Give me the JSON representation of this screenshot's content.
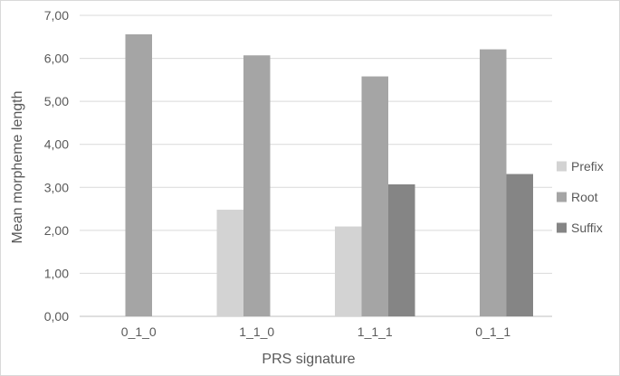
{
  "chart_data": {
    "type": "bar",
    "categories": [
      "0_1_0",
      "1_1_0",
      "1_1_1",
      "0_1_1"
    ],
    "series": [
      {
        "name": "Prefix",
        "color": "#d3d3d3",
        "values": [
          null,
          2.48,
          2.09,
          null
        ]
      },
      {
        "name": "Root",
        "color": "#a5a5a5",
        "values": [
          6.56,
          6.07,
          5.58,
          6.21
        ]
      },
      {
        "name": "Suffix",
        "color": "#858585",
        "values": [
          null,
          null,
          3.07,
          3.31
        ]
      }
    ],
    "title": "",
    "xlabel": "PRS signature",
    "ylabel": "Mean morpheme  length",
    "ylim": [
      0,
      7
    ],
    "yticks": [
      "0,00",
      "1,00",
      "2,00",
      "3,00",
      "4,00",
      "5,00",
      "6,00",
      "7,00"
    ],
    "grid": true,
    "legend_position": "right"
  }
}
